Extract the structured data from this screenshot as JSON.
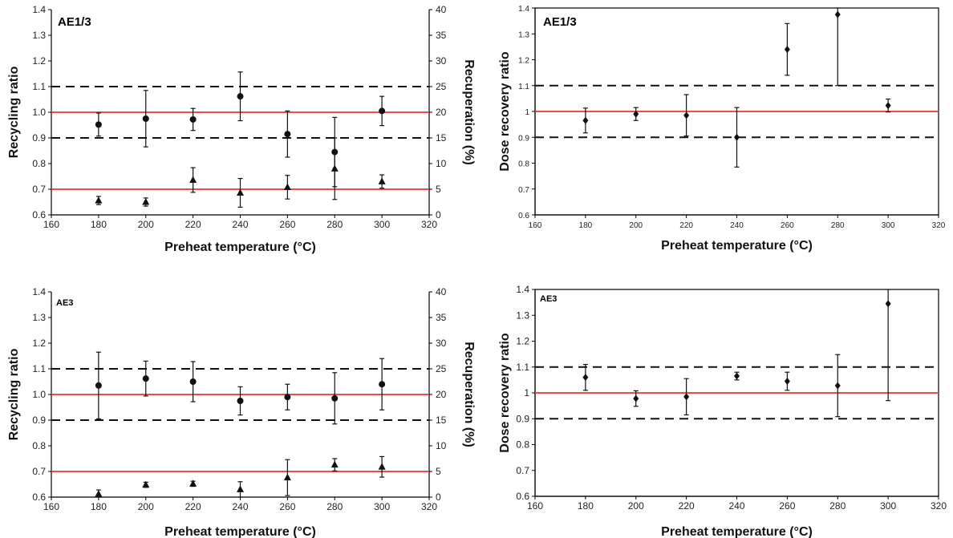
{
  "colors": {
    "reference": "#e8372a",
    "limit": "#111111",
    "marker": "#111111",
    "axis": "#000000"
  },
  "chart_data": [
    {
      "type": "scatter",
      "panel": "top-left",
      "label": "AE1/3",
      "xlabel": "Preheat temperature (°C)",
      "ylabel": "Recycling ratio",
      "y2label": "Recuperation (%)",
      "xlim": [
        160,
        320
      ],
      "ylim": [
        0.6,
        1.4
      ],
      "y2lim": [
        0,
        40
      ],
      "xticks": [
        "160",
        "180",
        "200",
        "220",
        "240",
        "260",
        "280",
        "300",
        "320"
      ],
      "yticks": [
        "0.6",
        "0.7",
        "0.8",
        "0.9",
        "1.0",
        "1.1",
        "1.2",
        "1.3",
        "1.4"
      ],
      "y2ticks": [
        "0",
        "5",
        "10",
        "15",
        "20",
        "25",
        "30",
        "35",
        "40"
      ],
      "ref_lines": [
        1.0,
        0.7
      ],
      "dashed_lines": [
        1.1,
        0.9
      ],
      "grid": false,
      "series": [
        {
          "marker": "circle",
          "axis": "left",
          "x": [
            180,
            200,
            220,
            240,
            260,
            280,
            300
          ],
          "y": [
            0.952,
            0.975,
            0.972,
            1.062,
            0.915,
            0.845,
            1.005
          ],
          "err": [
            0.045,
            0.11,
            0.043,
            0.095,
            0.09,
            0.135,
            0.057
          ]
        },
        {
          "marker": "triangle",
          "axis": "right",
          "x": [
            180,
            200,
            220,
            240,
            260,
            280,
            300
          ],
          "y": [
            2.8,
            2.5,
            6.8,
            4.3,
            5.4,
            9.0,
            6.5
          ],
          "err": [
            0.8,
            0.8,
            2.4,
            2.8,
            2.3,
            6.0,
            1.3
          ]
        }
      ]
    },
    {
      "type": "scatter",
      "panel": "top-right",
      "label": "AE1/3",
      "xlabel": "Preheat temperature (°C)",
      "ylabel": "Dose recovery ratio",
      "xlim": [
        160,
        320
      ],
      "ylim": [
        0.6,
        1.4
      ],
      "xticks": [
        "160",
        "180",
        "200",
        "220",
        "240",
        "260",
        "280",
        "300",
        "320"
      ],
      "yticks": [
        "0.6",
        "0.7",
        "0.8",
        "0.9",
        "1",
        "1.1",
        "1.2",
        "1.3",
        "1.4"
      ],
      "ref_lines": [
        1.0
      ],
      "dashed_lines": [
        1.1,
        0.9
      ],
      "grid": false,
      "series": [
        {
          "marker": "diamond",
          "axis": "left",
          "x": [
            180,
            200,
            220,
            240,
            260,
            280,
            300
          ],
          "y": [
            0.965,
            0.99,
            0.985,
            0.9,
            1.24,
            1.375,
            1.023
          ],
          "err": [
            0.048,
            0.025,
            0.08,
            0.115,
            0.1,
            0.275,
            0.025
          ]
        }
      ]
    },
    {
      "type": "scatter",
      "panel": "bottom-left",
      "label": "AE3",
      "xlabel": "Preheat temperature (°C)",
      "ylabel": "Recycling ratio",
      "y2label": "Recuperation (%)",
      "xlim": [
        160,
        320
      ],
      "ylim": [
        0.6,
        1.4
      ],
      "y2lim": [
        0,
        40
      ],
      "xticks": [
        "160",
        "180",
        "200",
        "220",
        "240",
        "260",
        "280",
        "300",
        "320"
      ],
      "yticks": [
        "0.6",
        "0.7",
        "0.8",
        "0.9",
        "1.0",
        "1.1",
        "1.2",
        "1.3",
        "1.4"
      ],
      "y2ticks": [
        "0",
        "5",
        "10",
        "15",
        "20",
        "25",
        "30",
        "35",
        "40"
      ],
      "ref_lines": [
        1.0,
        0.7
      ],
      "dashed_lines": [
        1.1,
        0.9
      ],
      "grid": false,
      "series": [
        {
          "marker": "circle",
          "axis": "left",
          "x": [
            180,
            200,
            220,
            240,
            260,
            280,
            300
          ],
          "y": [
            1.035,
            1.062,
            1.05,
            0.975,
            0.99,
            0.985,
            1.04
          ],
          "err": [
            0.13,
            0.068,
            0.078,
            0.055,
            0.05,
            0.1,
            0.1
          ]
        },
        {
          "marker": "triangle",
          "axis": "right",
          "x": [
            180,
            200,
            220,
            240,
            260,
            280,
            300
          ],
          "y": [
            0.6,
            2.4,
            2.6,
            1.5,
            3.8,
            6.3,
            5.9
          ],
          "err": [
            0.8,
            0.5,
            0.5,
            1.5,
            3.5,
            1.2,
            2.0
          ]
        }
      ]
    },
    {
      "type": "scatter",
      "panel": "bottom-right",
      "label": "AE3",
      "xlabel": "Preheat temperature (°C)",
      "ylabel": "Dose recovery ratio",
      "xlim": [
        160,
        320
      ],
      "ylim": [
        0.6,
        1.4
      ],
      "xticks": [
        "160",
        "180",
        "200",
        "220",
        "240",
        "260",
        "280",
        "300",
        "320"
      ],
      "yticks": [
        "0.6",
        "0.7",
        "0.8",
        "0.9",
        "1",
        "1.1",
        "1.2",
        "1.3",
        "1.4"
      ],
      "ref_lines": [
        1.0
      ],
      "dashed_lines": [
        1.1,
        0.9
      ],
      "grid": false,
      "series": [
        {
          "marker": "diamond",
          "axis": "left",
          "x": [
            180,
            200,
            220,
            240,
            260,
            280,
            300
          ],
          "y": [
            1.06,
            0.978,
            0.985,
            1.065,
            1.045,
            1.028,
            1.345
          ],
          "err": [
            0.05,
            0.03,
            0.07,
            0.015,
            0.035,
            0.12,
            0.375
          ]
        }
      ]
    }
  ]
}
